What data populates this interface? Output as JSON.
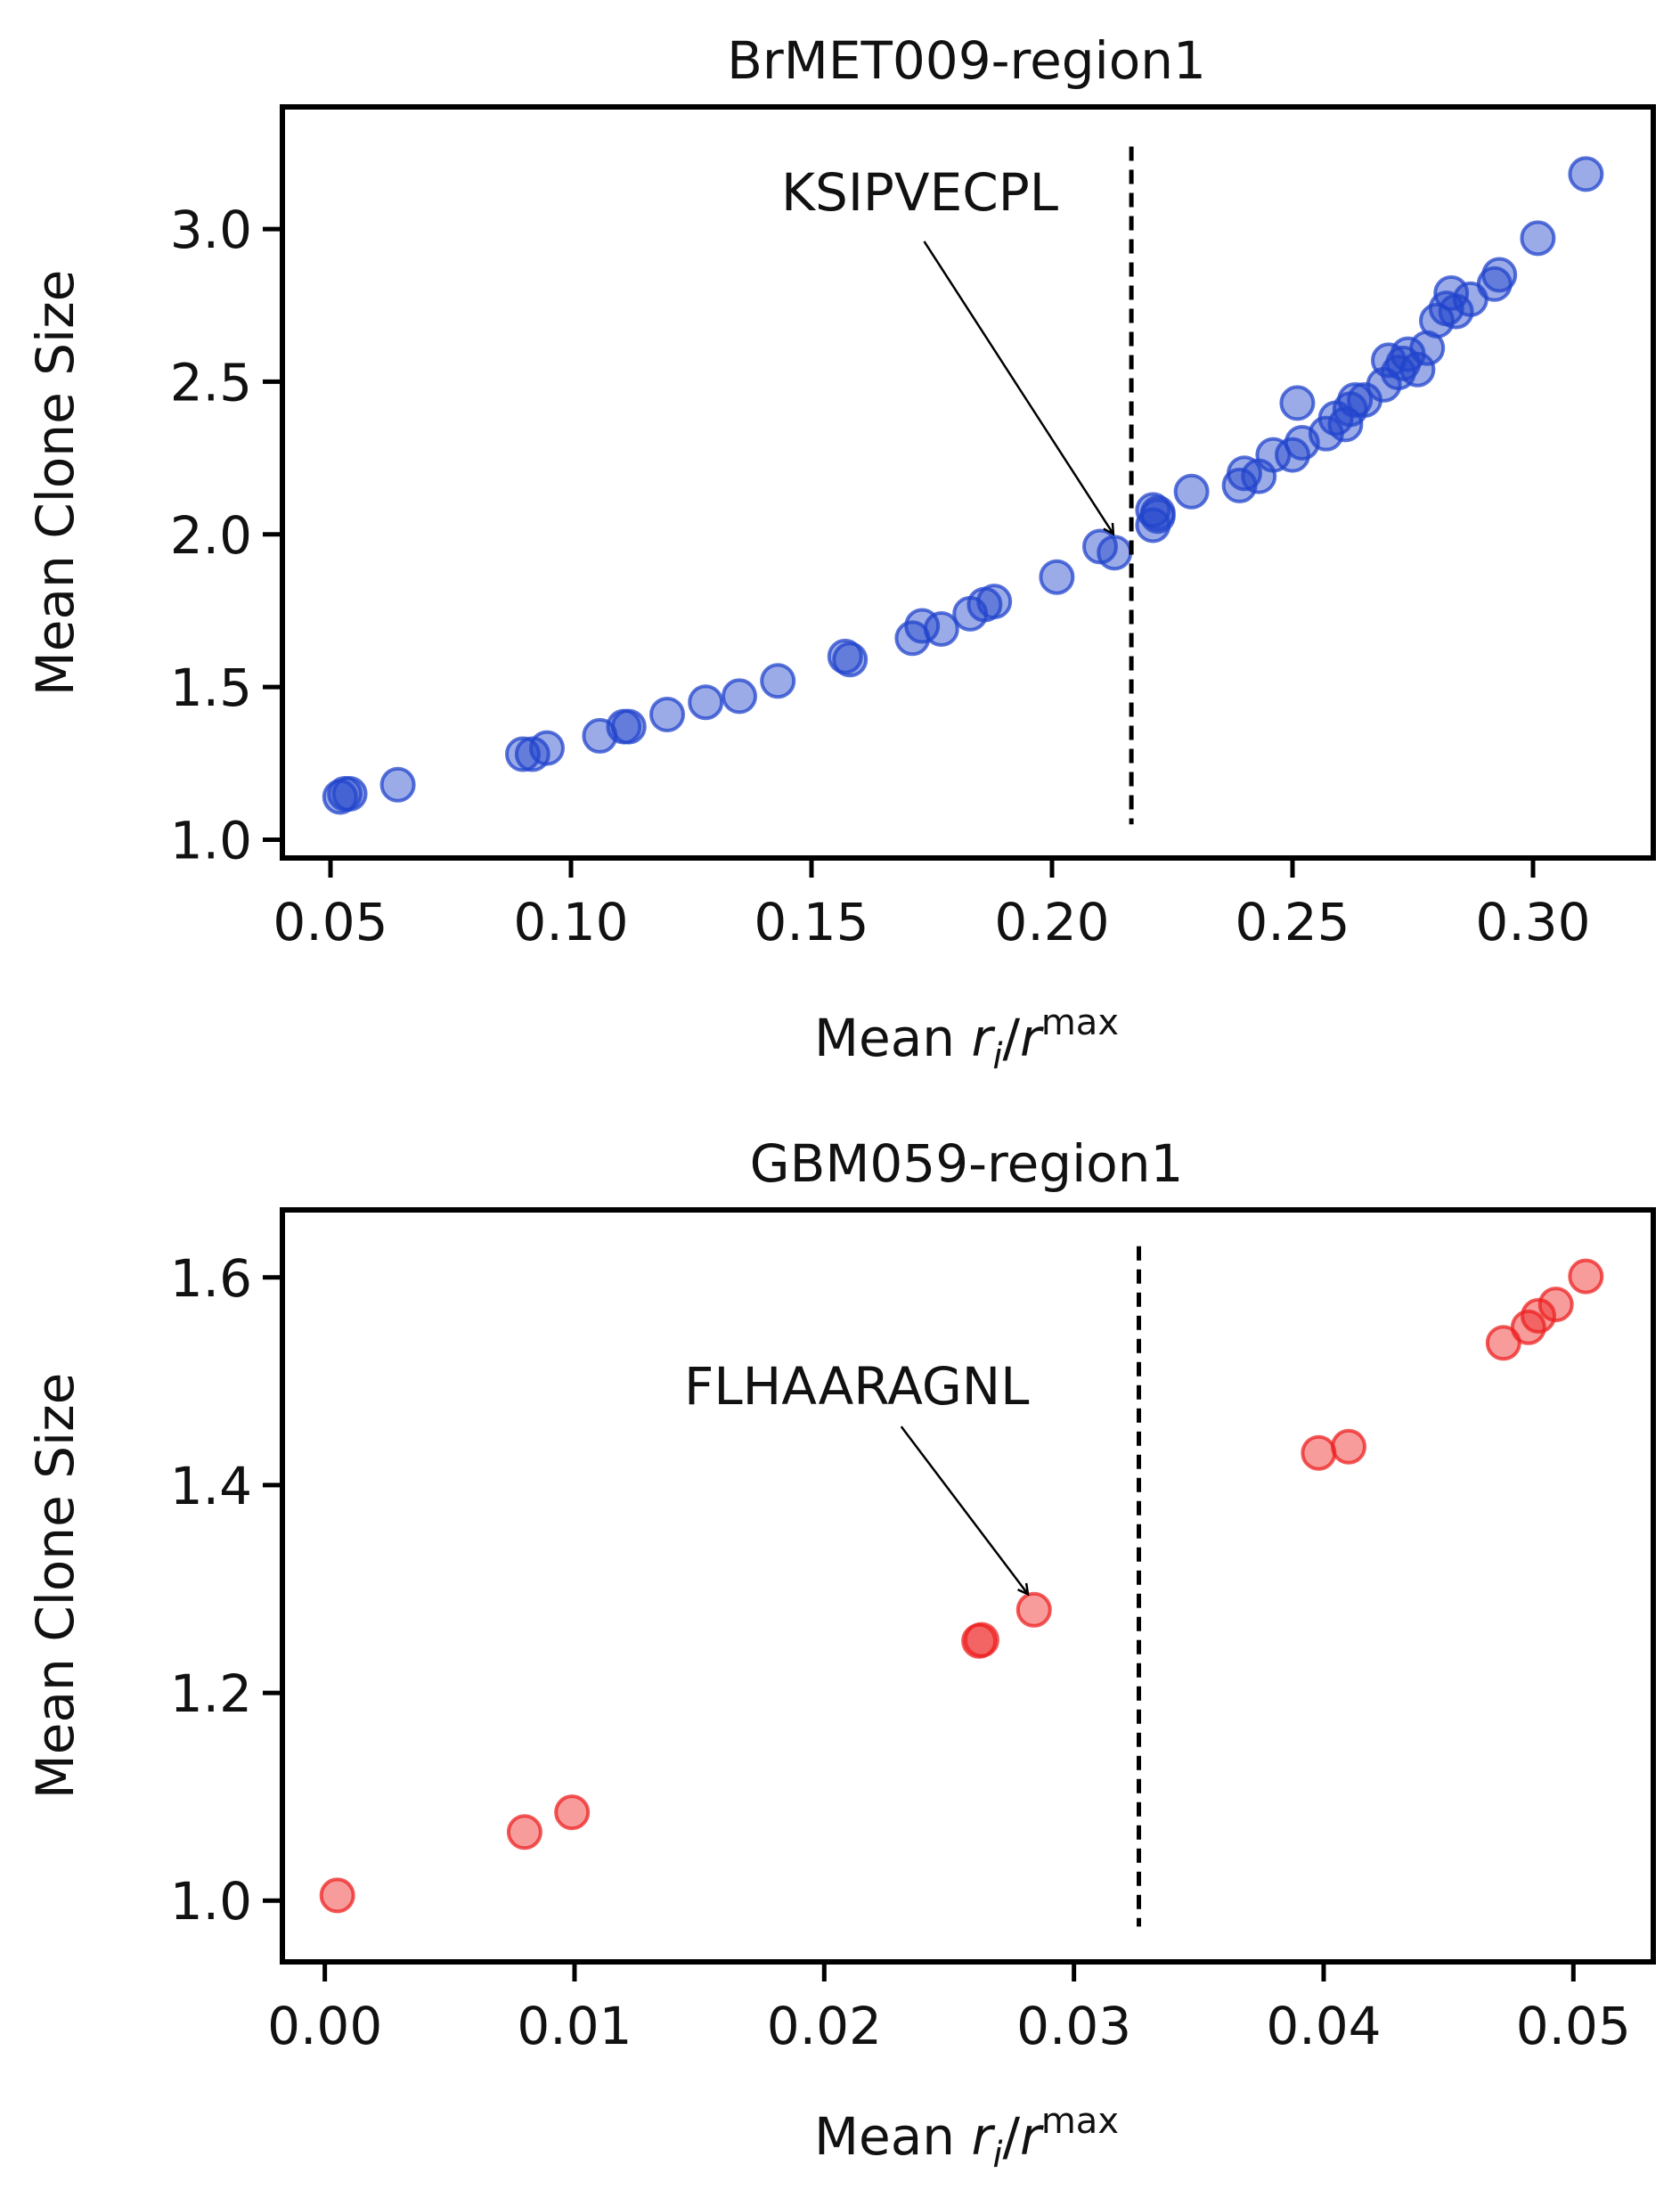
{
  "chart_data": [
    {
      "type": "scatter",
      "title": "BrMET009-region1",
      "xlabel": "Mean r_i/r_i^max",
      "xlabel_parts": {
        "prefix": "Mean ",
        "r": "r",
        "sub_i": "i",
        "slash": "/",
        "sup": "max"
      },
      "ylabel": "Mean Clone Size",
      "xlim": [
        0.04,
        0.325
      ],
      "ylim": [
        0.94,
        3.4
      ],
      "xticks": [
        0.05,
        0.1,
        0.15,
        0.2,
        0.25,
        0.3
      ],
      "xtick_labels": [
        "0.05",
        "0.10",
        "0.15",
        "0.20",
        "0.25",
        "0.30"
      ],
      "yticks": [
        1.0,
        1.5,
        2.0,
        2.5,
        3.0
      ],
      "ytick_labels": [
        "1.0",
        "1.5",
        "2.0",
        "2.5",
        "3.0"
      ],
      "grid": false,
      "color": "#2244cc",
      "threshold_x": 0.2165,
      "threshold_y_range": [
        1.05,
        3.27
      ],
      "annotation": {
        "text": "KSIPVECPL",
        "x": 0.2135,
        "y": 1.96,
        "text_x": 0.1725,
        "text_y": 3.12
      },
      "points": [
        [
          0.052,
          1.14
        ],
        [
          0.053,
          1.15
        ],
        [
          0.054,
          1.15
        ],
        [
          0.064,
          1.18
        ],
        [
          0.09,
          1.28
        ],
        [
          0.092,
          1.28
        ],
        [
          0.095,
          1.3
        ],
        [
          0.106,
          1.34
        ],
        [
          0.111,
          1.37
        ],
        [
          0.112,
          1.37
        ],
        [
          0.12,
          1.41
        ],
        [
          0.128,
          1.45
        ],
        [
          0.135,
          1.47
        ],
        [
          0.143,
          1.52
        ],
        [
          0.157,
          1.6
        ],
        [
          0.158,
          1.59
        ],
        [
          0.171,
          1.66
        ],
        [
          0.173,
          1.7
        ],
        [
          0.177,
          1.69
        ],
        [
          0.183,
          1.74
        ],
        [
          0.186,
          1.77
        ],
        [
          0.188,
          1.78
        ],
        [
          0.201,
          1.86
        ],
        [
          0.21,
          1.96
        ],
        [
          0.213,
          1.94
        ],
        [
          0.221,
          2.03
        ],
        [
          0.222,
          2.06
        ],
        [
          0.222,
          2.07
        ],
        [
          0.221,
          2.08
        ],
        [
          0.229,
          2.14
        ],
        [
          0.239,
          2.16
        ],
        [
          0.24,
          2.2
        ],
        [
          0.243,
          2.19
        ],
        [
          0.246,
          2.26
        ],
        [
          0.25,
          2.26
        ],
        [
          0.251,
          2.43
        ],
        [
          0.252,
          2.3
        ],
        [
          0.257,
          2.33
        ],
        [
          0.259,
          2.38
        ],
        [
          0.261,
          2.36
        ],
        [
          0.262,
          2.41
        ],
        [
          0.263,
          2.44
        ],
        [
          0.265,
          2.44
        ],
        [
          0.269,
          2.49
        ],
        [
          0.27,
          2.57
        ],
        [
          0.272,
          2.53
        ],
        [
          0.273,
          2.56
        ],
        [
          0.274,
          2.59
        ],
        [
          0.276,
          2.54
        ],
        [
          0.278,
          2.61
        ],
        [
          0.28,
          2.7
        ],
        [
          0.282,
          2.74
        ],
        [
          0.283,
          2.79
        ],
        [
          0.284,
          2.73
        ],
        [
          0.287,
          2.77
        ],
        [
          0.292,
          2.82
        ],
        [
          0.293,
          2.85
        ],
        [
          0.301,
          2.97
        ],
        [
          0.311,
          3.18
        ]
      ]
    },
    {
      "type": "scatter",
      "title": "GBM059-region1",
      "xlabel": "Mean r_i/r_i^max",
      "xlabel_parts": {
        "prefix": "Mean ",
        "r": "r",
        "sub_i": "i",
        "slash": "/",
        "sup": "max"
      },
      "ylabel": "Mean Clone Size",
      "xlim": [
        -0.0017,
        0.0532
      ],
      "ylim": [
        0.941,
        1.665
      ],
      "xticks": [
        0.0,
        0.01,
        0.02,
        0.03,
        0.04,
        0.05
      ],
      "xtick_labels": [
        "0.00",
        "0.01",
        "0.02",
        "0.03",
        "0.04",
        "0.05"
      ],
      "yticks": [
        1.0,
        1.2,
        1.4,
        1.6
      ],
      "ytick_labels": [
        "1.0",
        "1.2",
        "1.4",
        "1.6"
      ],
      "grid": false,
      "color": "#ee2222",
      "threshold_x": 0.0326,
      "threshold_y_range": [
        0.975,
        1.63
      ],
      "annotation": {
        "text": "FLHAARAGNL",
        "x": 0.0283,
        "y": 1.283,
        "text_x": 0.0213,
        "text_y": 1.495
      },
      "points": [
        [
          0.0005,
          1.005
        ],
        [
          0.008,
          1.066
        ],
        [
          0.0099,
          1.085
        ],
        [
          0.0262,
          1.25
        ],
        [
          0.0263,
          1.251
        ],
        [
          0.0284,
          1.28
        ],
        [
          0.0398,
          1.431
        ],
        [
          0.041,
          1.437
        ],
        [
          0.0472,
          1.537
        ],
        [
          0.0482,
          1.552
        ],
        [
          0.0486,
          1.563
        ],
        [
          0.0493,
          1.574
        ],
        [
          0.0505,
          1.601
        ]
      ]
    }
  ]
}
